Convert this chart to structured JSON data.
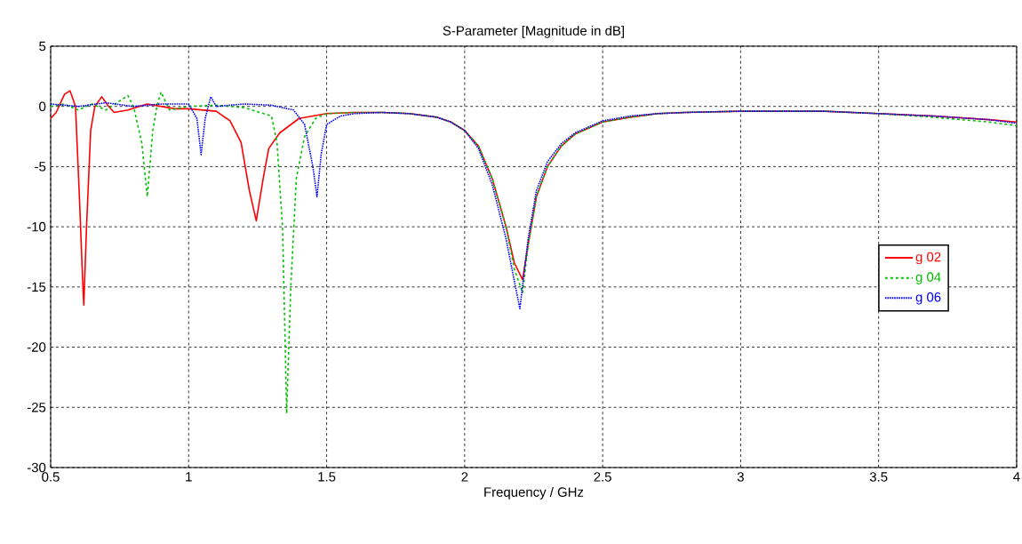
{
  "chart_data": {
    "type": "line",
    "title": "S-Parameter [Magnitude in dB]",
    "xlabel": "Frequency / GHz",
    "xlim": [
      0.5,
      4
    ],
    "ylim": [
      -30,
      5
    ],
    "xticks": [
      0.5,
      1,
      1.5,
      2,
      2.5,
      3,
      3.5,
      4
    ],
    "yticks": [
      -30,
      -25,
      -20,
      -15,
      -10,
      -5,
      0,
      5
    ],
    "grid": true,
    "legend": "right",
    "series": [
      {
        "name": "g 02",
        "color": "#ff0000",
        "line_style": "solid",
        "x": [
          0.5,
          0.52,
          0.55,
          0.57,
          0.59,
          0.605,
          0.615,
          0.62,
          0.63,
          0.645,
          0.66,
          0.685,
          0.71,
          0.73,
          0.78,
          0.85,
          0.95,
          1.0,
          1.1,
          1.15,
          1.19,
          1.22,
          1.245,
          1.27,
          1.29,
          1.33,
          1.4,
          1.5,
          1.6,
          1.7,
          1.8,
          1.9,
          1.95,
          2.0,
          2.05,
          2.1,
          2.15,
          2.18,
          2.21,
          2.23,
          2.26,
          2.3,
          2.35,
          2.4,
          2.5,
          2.6,
          2.7,
          2.8,
          3.0,
          3.3,
          3.5,
          3.7,
          3.9,
          4.0
        ],
        "values": [
          -1.0,
          -0.5,
          1.0,
          1.3,
          0,
          -8,
          -14,
          -16.5,
          -10,
          -2,
          0,
          0.8,
          0,
          -0.5,
          -0.3,
          0.2,
          -0.2,
          -0.2,
          -0.4,
          -1.2,
          -3,
          -7,
          -9.5,
          -6,
          -3.5,
          -2.2,
          -1.0,
          -0.6,
          -0.5,
          -0.5,
          -0.6,
          -0.9,
          -1.3,
          -2.0,
          -3.3,
          -6,
          -10,
          -13,
          -14.4,
          -11.5,
          -7.5,
          -5,
          -3.3,
          -2.3,
          -1.3,
          -0.9,
          -0.6,
          -0.5,
          -0.4,
          -0.4,
          -0.6,
          -0.8,
          -1.1,
          -1.3
        ]
      },
      {
        "name": "g 04",
        "color": "#00c000",
        "line_style": "dashed",
        "x": [
          0.5,
          0.55,
          0.6,
          0.65,
          0.7,
          0.74,
          0.78,
          0.8,
          0.83,
          0.85,
          0.87,
          0.885,
          0.9,
          0.93,
          1.0,
          1.1,
          1.2,
          1.3,
          1.32,
          1.34,
          1.35,
          1.355,
          1.37,
          1.39,
          1.42,
          1.46,
          1.5,
          1.6,
          1.7,
          1.8,
          1.9,
          1.95,
          2.0,
          2.05,
          2.1,
          2.15,
          2.18,
          2.21,
          2.23,
          2.26,
          2.3,
          2.35,
          2.4,
          2.5,
          2.6,
          2.7,
          2.8,
          3.0,
          3.3,
          3.5,
          3.7,
          3.9,
          4.0
        ],
        "values": [
          0,
          0.2,
          -0.3,
          0.2,
          -0.3,
          0.3,
          0.9,
          0,
          -3,
          -7.5,
          -2,
          0,
          1.2,
          -0.3,
          0,
          0.1,
          -0.1,
          -0.8,
          -3,
          -10,
          -20,
          -25.5,
          -15,
          -6,
          -2.5,
          -1.0,
          -0.6,
          -0.5,
          -0.5,
          -0.6,
          -0.9,
          -1.3,
          -2.0,
          -3.3,
          -6,
          -10,
          -13.5,
          -15.5,
          -11.5,
          -7.5,
          -5,
          -3.3,
          -2.3,
          -1.3,
          -0.9,
          -0.6,
          -0.5,
          -0.4,
          -0.4,
          -0.6,
          -0.9,
          -1.3,
          -1.6
        ]
      },
      {
        "name": "g 06",
        "color": "#0000ff",
        "line_style": "dotted",
        "x": [
          0.5,
          0.6,
          0.7,
          0.8,
          0.9,
          1.0,
          1.03,
          1.045,
          1.06,
          1.08,
          1.1,
          1.2,
          1.3,
          1.38,
          1.42,
          1.45,
          1.465,
          1.48,
          1.5,
          1.55,
          1.6,
          1.7,
          1.8,
          1.9,
          1.95,
          2.0,
          2.05,
          2.1,
          2.15,
          2.18,
          2.2,
          2.23,
          2.26,
          2.3,
          2.35,
          2.4,
          2.5,
          2.6,
          2.7,
          2.8,
          3.0,
          3.3,
          3.5,
          3.7,
          3.9,
          4.0
        ],
        "values": [
          0.2,
          0,
          0.3,
          0,
          0.2,
          0.2,
          -1,
          -4,
          -1,
          0.8,
          0,
          0.2,
          0.1,
          -0.3,
          -1.5,
          -5,
          -7.5,
          -4,
          -1.5,
          -0.8,
          -0.6,
          -0.5,
          -0.6,
          -0.9,
          -1.3,
          -2.0,
          -3.5,
          -6.5,
          -11,
          -14.5,
          -16.8,
          -11,
          -7,
          -4.6,
          -3.1,
          -2.2,
          -1.2,
          -0.8,
          -0.6,
          -0.5,
          -0.4,
          -0.4,
          -0.6,
          -0.8,
          -1.1,
          -1.4
        ]
      }
    ]
  }
}
